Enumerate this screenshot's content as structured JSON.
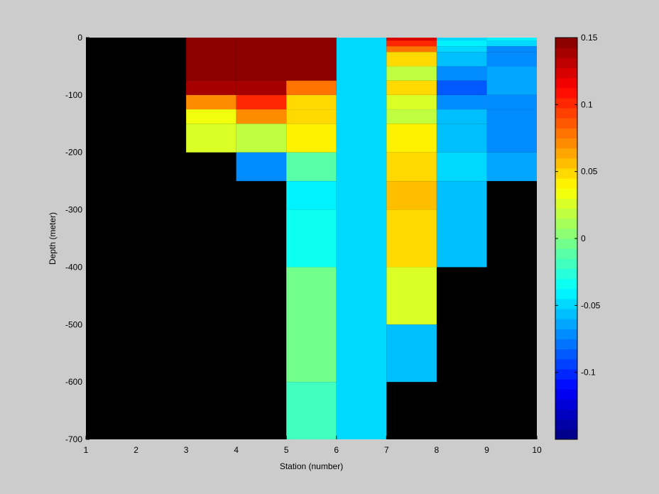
{
  "chart_data": {
    "type": "heatmap",
    "title": "",
    "xlabel": "Station (number)",
    "ylabel": "Depth (meter)",
    "xlim": [
      1,
      10
    ],
    "ylim": [
      -700,
      0
    ],
    "x_ticks": [
      1,
      2,
      3,
      4,
      5,
      6,
      7,
      8,
      9,
      10
    ],
    "y_ticks": [
      0,
      -100,
      -200,
      -300,
      -400,
      -500,
      -600,
      -700
    ],
    "colorbar": {
      "colormap": "jet",
      "clim": [
        -0.15,
        0.15
      ],
      "ticks": [
        0.15,
        0.1,
        0.05,
        0,
        -0.05,
        -0.1
      ],
      "tick_labels": [
        "0.15",
        "0.1",
        "0.05",
        "0",
        "-0.05",
        "-0.1"
      ],
      "levels": 40,
      "nan_color": "#000000"
    },
    "cells": [
      {
        "x0": 3,
        "x1": 4,
        "d0": 0,
        "d1": -75,
        "value": 0.15
      },
      {
        "x0": 3,
        "x1": 4,
        "d0": -75,
        "d1": -100,
        "value": 0.135
      },
      {
        "x0": 3,
        "x1": 4,
        "d0": -100,
        "d1": -125,
        "value": 0.07
      },
      {
        "x0": 3,
        "x1": 4,
        "d0": -125,
        "d1": -150,
        "value": 0.033
      },
      {
        "x0": 3,
        "x1": 4,
        "d0": -150,
        "d1": -200,
        "value": 0.028
      },
      {
        "x0": 4,
        "x1": 5,
        "d0": 0,
        "d1": -75,
        "value": 0.15
      },
      {
        "x0": 4,
        "x1": 5,
        "d0": -75,
        "d1": -100,
        "value": 0.135
      },
      {
        "x0": 4,
        "x1": 5,
        "d0": -100,
        "d1": -125,
        "value": 0.1
      },
      {
        "x0": 4,
        "x1": 5,
        "d0": -125,
        "d1": -150,
        "value": 0.07
      },
      {
        "x0": 4,
        "x1": 5,
        "d0": -150,
        "d1": -200,
        "value": 0.018
      },
      {
        "x0": 4,
        "x1": 5,
        "d0": -200,
        "d1": -250,
        "value": -0.07
      },
      {
        "x0": 5,
        "x1": 6,
        "d0": 0,
        "d1": -75,
        "value": 0.15
      },
      {
        "x0": 5,
        "x1": 6,
        "d0": -75,
        "d1": -100,
        "value": 0.075
      },
      {
        "x0": 5,
        "x1": 6,
        "d0": -100,
        "d1": -125,
        "value": 0.045
      },
      {
        "x0": 5,
        "x1": 6,
        "d0": -125,
        "d1": -150,
        "value": 0.048
      },
      {
        "x0": 5,
        "x1": 6,
        "d0": -150,
        "d1": -200,
        "value": 0.042
      },
      {
        "x0": 5,
        "x1": 6,
        "d0": -200,
        "d1": -250,
        "value": -0.012
      },
      {
        "x0": 5,
        "x1": 6,
        "d0": -250,
        "d1": -300,
        "value": -0.04
      },
      {
        "x0": 5,
        "x1": 6,
        "d0": -300,
        "d1": -400,
        "value": -0.033
      },
      {
        "x0": 5,
        "x1": 6,
        "d0": -400,
        "d1": -600,
        "value": -0.003
      },
      {
        "x0": 5,
        "x1": 6,
        "d0": -600,
        "d1": -700,
        "value": -0.018
      },
      {
        "x0": 6,
        "x1": 7,
        "d0": 0,
        "d1": -700,
        "value": -0.047
      },
      {
        "x0": 7,
        "x1": 8,
        "d0": 0,
        "d1": -5,
        "value": 0.125
      },
      {
        "x0": 7,
        "x1": 8,
        "d0": -5,
        "d1": -15,
        "value": 0.1
      },
      {
        "x0": 7,
        "x1": 8,
        "d0": -15,
        "d1": -25,
        "value": 0.075
      },
      {
        "x0": 7,
        "x1": 8,
        "d0": -25,
        "d1": -50,
        "value": 0.05
      },
      {
        "x0": 7,
        "x1": 8,
        "d0": -50,
        "d1": -75,
        "value": 0.02
      },
      {
        "x0": 7,
        "x1": 8,
        "d0": -75,
        "d1": -100,
        "value": 0.045
      },
      {
        "x0": 7,
        "x1": 8,
        "d0": -100,
        "d1": -125,
        "value": 0.025
      },
      {
        "x0": 7,
        "x1": 8,
        "d0": -125,
        "d1": -150,
        "value": 0.02
      },
      {
        "x0": 7,
        "x1": 8,
        "d0": -150,
        "d1": -200,
        "value": 0.042
      },
      {
        "x0": 7,
        "x1": 8,
        "d0": -200,
        "d1": -250,
        "value": 0.052
      },
      {
        "x0": 7,
        "x1": 8,
        "d0": -250,
        "d1": -300,
        "value": 0.058
      },
      {
        "x0": 7,
        "x1": 8,
        "d0": -300,
        "d1": -400,
        "value": 0.052
      },
      {
        "x0": 7,
        "x1": 8,
        "d0": -400,
        "d1": -500,
        "value": 0.025
      },
      {
        "x0": 7,
        "x1": 8,
        "d0": -500,
        "d1": -600,
        "value": -0.055
      },
      {
        "x0": 8,
        "x1": 9,
        "d0": 0,
        "d1": -5,
        "value": -0.05
      },
      {
        "x0": 8,
        "x1": 9,
        "d0": -5,
        "d1": -15,
        "value": -0.04
      },
      {
        "x0": 8,
        "x1": 9,
        "d0": -15,
        "d1": -25,
        "value": -0.05
      },
      {
        "x0": 8,
        "x1": 9,
        "d0": -25,
        "d1": -50,
        "value": -0.06
      },
      {
        "x0": 8,
        "x1": 9,
        "d0": -50,
        "d1": -75,
        "value": -0.075
      },
      {
        "x0": 8,
        "x1": 9,
        "d0": -75,
        "d1": -100,
        "value": -0.09
      },
      {
        "x0": 8,
        "x1": 9,
        "d0": -100,
        "d1": -125,
        "value": -0.07
      },
      {
        "x0": 8,
        "x1": 9,
        "d0": -125,
        "d1": -150,
        "value": -0.06
      },
      {
        "x0": 8,
        "x1": 9,
        "d0": -150,
        "d1": -200,
        "value": -0.055
      },
      {
        "x0": 8,
        "x1": 9,
        "d0": -200,
        "d1": -250,
        "value": -0.05
      },
      {
        "x0": 8,
        "x1": 9,
        "d0": -250,
        "d1": -400,
        "value": -0.058
      },
      {
        "x0": 9,
        "x1": 10,
        "d0": 0,
        "d1": -5,
        "value": -0.045
      },
      {
        "x0": 9,
        "x1": 10,
        "d0": -5,
        "d1": -15,
        "value": -0.05
      },
      {
        "x0": 9,
        "x1": 10,
        "d0": -15,
        "d1": -25,
        "value": -0.07
      },
      {
        "x0": 9,
        "x1": 10,
        "d0": -25,
        "d1": -50,
        "value": -0.075
      },
      {
        "x0": 9,
        "x1": 10,
        "d0": -50,
        "d1": -100,
        "value": -0.065
      },
      {
        "x0": 9,
        "x1": 10,
        "d0": -100,
        "d1": -125,
        "value": -0.068
      },
      {
        "x0": 9,
        "x1": 10,
        "d0": -125,
        "d1": -200,
        "value": -0.075
      },
      {
        "x0": 9,
        "x1": 10,
        "d0": -200,
        "d1": -250,
        "value": -0.065
      }
    ]
  }
}
